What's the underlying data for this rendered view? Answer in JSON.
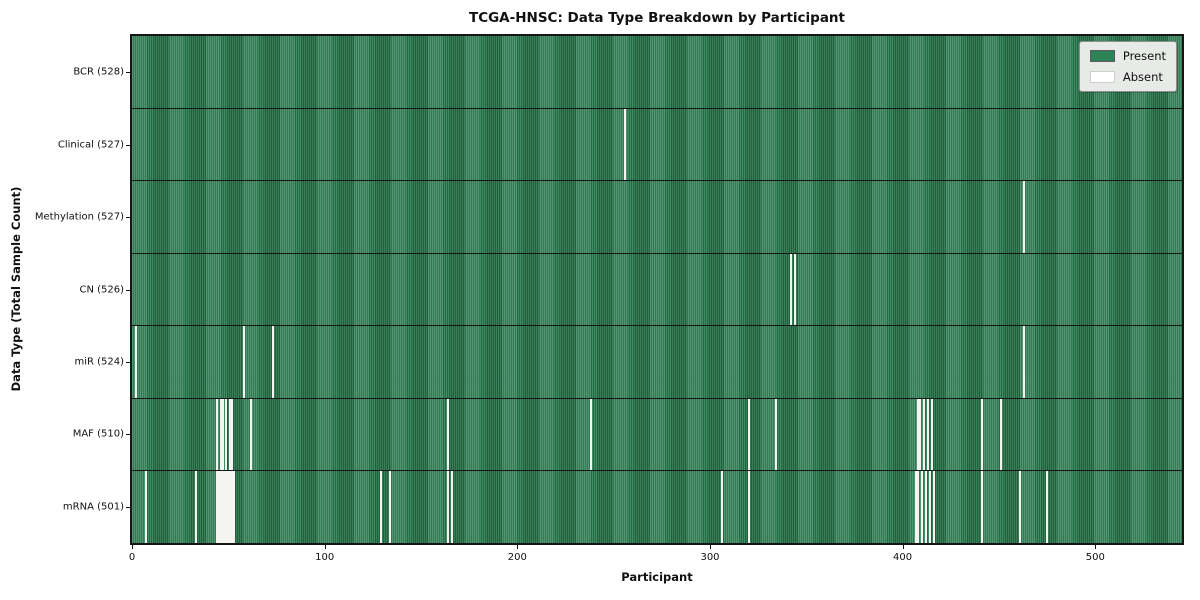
{
  "chart": {
    "title": "TCGA-HNSC: Data Type Breakdown by Participant",
    "xlabel": "Participant",
    "ylabel": "Data Type (Total Sample Count)"
  },
  "colors": {
    "present_green": "#2e8457",
    "present_stripe_dark": "#256a44",
    "present_stripe_light": "#3e8d62",
    "absent_white": "#f4f4f2",
    "legend_background": "#e7eae7",
    "axis_black": "#151515"
  },
  "chart_data": {
    "type": "heatmap",
    "title": "TCGA-HNSC: Data Type Breakdown by Participant",
    "xlabel": "Participant",
    "ylabel": "Data Type (Total Sample Count)",
    "x_ticks": [
      0,
      100,
      200,
      300,
      400,
      500
    ],
    "x_max": 545,
    "n_participants": 528,
    "grid": false,
    "legend_position": "upper right",
    "legend": [
      {
        "label": "Present",
        "color": "#2e8457"
      },
      {
        "label": "Absent",
        "color": "#ffffff"
      }
    ],
    "rows": [
      {
        "label": "BCR (528)",
        "data_type": "BCR",
        "present_count": 528,
        "absent_participants": []
      },
      {
        "label": "Clinical (527)",
        "data_type": "Clinical",
        "present_count": 527,
        "absent_participants": [
          256
        ]
      },
      {
        "label": "Methylation (527)",
        "data_type": "Methylation",
        "present_count": 527,
        "absent_participants": [
          463
        ]
      },
      {
        "label": "CN (526)",
        "data_type": "CN",
        "present_count": 526,
        "absent_participants": [
          342,
          344
        ]
      },
      {
        "label": "miR (524)",
        "data_type": "miR",
        "present_count": 524,
        "absent_participants": [
          2,
          58,
          73,
          463
        ]
      },
      {
        "label": "MAF (510)",
        "data_type": "MAF",
        "present_count": 510,
        "absent_participants": [
          44,
          46,
          47,
          49,
          51,
          52,
          62,
          164,
          238,
          320,
          334,
          408,
          409,
          411,
          413,
          415,
          441,
          451
        ]
      },
      {
        "label": "mRNA (501)",
        "data_type": "mRNA",
        "present_count": 501,
        "absent_participants": [
          7,
          33,
          44,
          45,
          46,
          47,
          48,
          49,
          50,
          51,
          52,
          53,
          129,
          134,
          164,
          166,
          306,
          320,
          407,
          408,
          410,
          412,
          414,
          416,
          441,
          461,
          475
        ]
      }
    ]
  }
}
